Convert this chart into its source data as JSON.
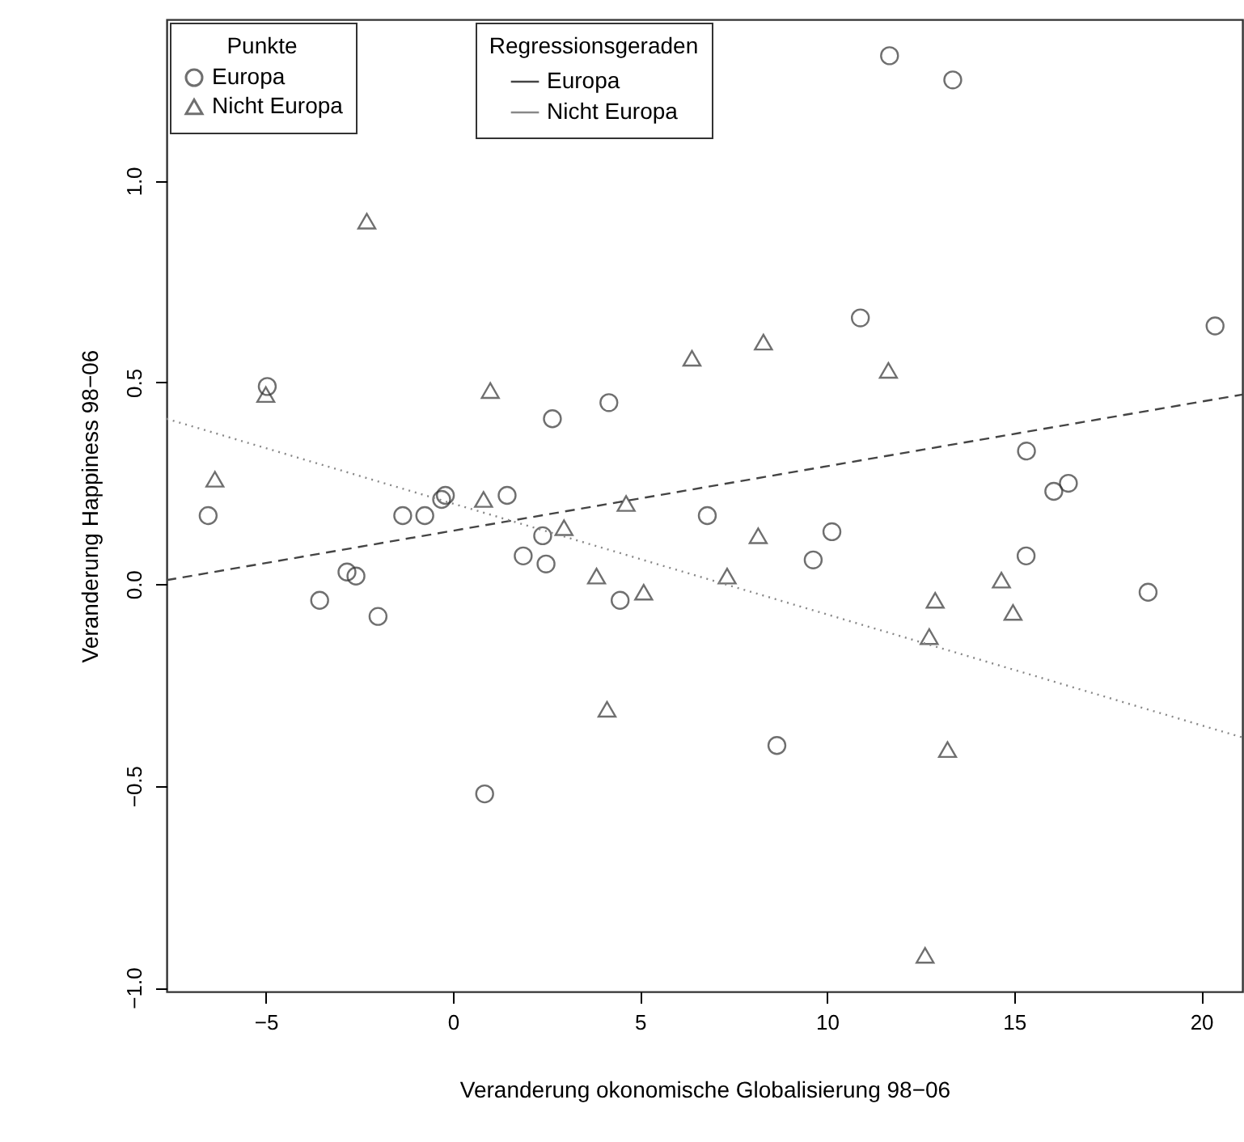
{
  "chart_data": {
    "type": "scatter",
    "xlabel": "Veranderung okonomische Globalisierung 98−06",
    "ylabel": "Veranderung Happiness 98−06",
    "legend_title": "Punkte",
    "annotations": [
      "Regressionsgeraden"
    ],
    "xlim": [
      -7.65,
      21.1
    ],
    "ylim": [
      -1.01,
      1.4
    ],
    "xticks": [
      -5,
      0,
      5,
      10,
      15,
      20
    ],
    "yticks": [
      {
        "value": -1,
        "label": "−1.0"
      },
      {
        "value": -0.5,
        "label": "−0.5"
      },
      {
        "value": 0,
        "label": "0.0"
      },
      {
        "value": 0.5,
        "label": "0.5"
      },
      {
        "value": 1,
        "label": "1.0"
      }
    ],
    "grid": false,
    "legend": "top left",
    "series": [
      {
        "name": "Europa",
        "marker": "circle",
        "color": "#333333",
        "x": [
          11.67,
          13.36,
          -4.96,
          10.89,
          20.37,
          2.66,
          4.17,
          15.33,
          16.06,
          16.45,
          -6.54,
          -1.34,
          -0.75,
          -0.3,
          -0.2,
          1.45,
          6.8,
          2.4,
          1.88,
          2.49,
          -2.83,
          -2.59,
          -3.56,
          -2.0,
          4.47,
          0.85,
          10.13,
          9.63,
          15.32,
          18.58,
          8.66
        ],
        "values": [
          1.31,
          1.25,
          0.49,
          0.66,
          0.64,
          0.41,
          0.45,
          0.33,
          0.23,
          0.25,
          0.17,
          0.17,
          0.17,
          0.21,
          0.22,
          0.22,
          0.17,
          0.12,
          0.07,
          0.05,
          0.03,
          0.02,
          -0.04,
          -0.08,
          -0.04,
          -0.52,
          0.13,
          0.06,
          0.07,
          -0.02,
          -0.4
        ]
      },
      {
        "name": "Nicht Europa",
        "marker": "triangle",
        "color": "#333333",
        "x": [
          -2.3,
          -5.0,
          1.0,
          6.39,
          -6.36,
          8.3,
          11.64,
          0.82,
          4.63,
          2.97,
          3.84,
          5.1,
          4.12,
          8.16,
          7.33,
          14.66,
          14.97,
          12.89,
          12.73,
          13.22,
          12.62
        ],
        "values": [
          0.9,
          0.47,
          0.48,
          0.56,
          0.26,
          0.6,
          0.53,
          0.21,
          0.2,
          0.14,
          0.02,
          -0.02,
          -0.31,
          0.12,
          0.02,
          0.01,
          -0.07,
          -0.04,
          -0.13,
          -0.41,
          -0.92
        ]
      },
      {
        "name": "Europa",
        "type": "line",
        "line_style": "dashed",
        "color": "#444444",
        "x": [
          -7.65,
          21.1
        ],
        "values": [
          0.01,
          0.47
        ]
      },
      {
        "name": "Nicht Europa",
        "type": "line",
        "line_style": "dotted",
        "color": "#888888",
        "x": [
          -7.65,
          21.1
        ],
        "values": [
          0.41,
          -0.38
        ]
      }
    ]
  }
}
